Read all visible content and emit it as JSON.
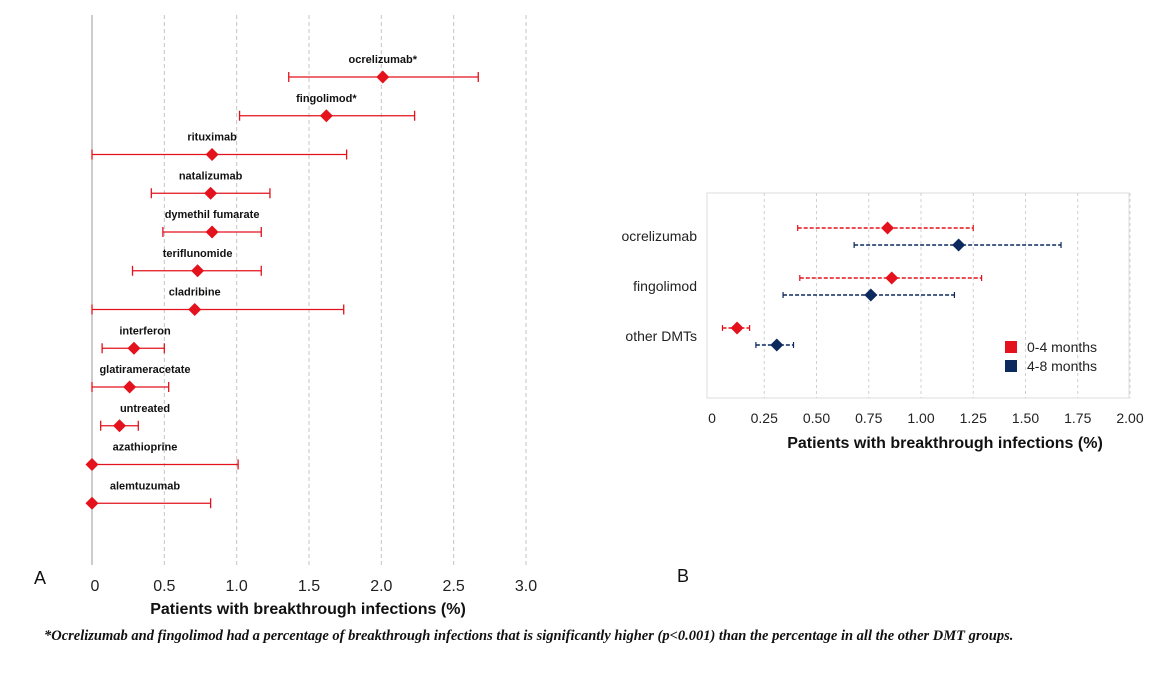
{
  "chart_data": [
    {
      "id": "A",
      "type": "forest",
      "panel_label": "A",
      "xlabel": "Patients with breakthrough infections (%)",
      "xlim": [
        0,
        3.0
      ],
      "xticks": [
        "0",
        "0.5",
        "1.0",
        "1.5",
        "2.0",
        "2.5",
        "3.0"
      ],
      "grid": "vertical dashed",
      "color": "#e3121c",
      "rows": [
        {
          "label": "ocrelizumab*",
          "estimate": 2.01,
          "lower": 1.36,
          "upper": 2.67
        },
        {
          "label": "fingolimod*",
          "estimate": 1.62,
          "lower": 1.02,
          "upper": 2.23
        },
        {
          "label": "rituximab",
          "estimate": 0.83,
          "lower": 0.0,
          "upper": 1.76
        },
        {
          "label": "natalizumab",
          "estimate": 0.82,
          "lower": 0.41,
          "upper": 1.23
        },
        {
          "label": "dymethil fumarate",
          "estimate": 0.83,
          "lower": 0.49,
          "upper": 1.17
        },
        {
          "label": "teriflunomide",
          "estimate": 0.73,
          "lower": 0.28,
          "upper": 1.17
        },
        {
          "label": "cladribine",
          "estimate": 0.71,
          "lower": 0.0,
          "upper": 1.74
        },
        {
          "label": "interferon",
          "estimate": 0.29,
          "lower": 0.07,
          "upper": 0.5
        },
        {
          "label": "glatirameracetate",
          "estimate": 0.26,
          "lower": 0.0,
          "upper": 0.53
        },
        {
          "label": "untreated",
          "estimate": 0.19,
          "lower": 0.06,
          "upper": 0.32
        },
        {
          "label": "azathioprine",
          "estimate": 0.0,
          "lower": 0.0,
          "upper": 1.01
        },
        {
          "label": "alemtuzumab",
          "estimate": 0.0,
          "lower": 0.0,
          "upper": 0.82
        }
      ]
    },
    {
      "id": "B",
      "type": "forest",
      "panel_label": "B",
      "xlabel": "Patients with breakthrough infections (%)",
      "xlim": [
        0,
        2.0
      ],
      "xticks": [
        "0",
        "0.25",
        "0.50",
        "0.75",
        "1.00",
        "1.25",
        "1.50",
        "1.75",
        "2.00"
      ],
      "grid": "vertical dashed",
      "legend_position": "bottom-right",
      "categories": [
        "ocrelizumab",
        "fingolimod",
        "other DMTs"
      ],
      "series": [
        {
          "name": "0-4 months",
          "color": "#e3121c",
          "points": [
            {
              "estimate": 0.84,
              "lower": 0.41,
              "upper": 1.25
            },
            {
              "estimate": 0.86,
              "lower": 0.42,
              "upper": 1.29
            },
            {
              "estimate": 0.12,
              "lower": 0.05,
              "upper": 0.18
            }
          ]
        },
        {
          "name": "4-8 months",
          "color": "#0d2a5e",
          "points": [
            {
              "estimate": 1.18,
              "lower": 0.68,
              "upper": 1.67
            },
            {
              "estimate": 0.76,
              "lower": 0.34,
              "upper": 1.16
            },
            {
              "estimate": 0.31,
              "lower": 0.21,
              "upper": 0.39
            }
          ]
        }
      ]
    }
  ],
  "footnote": "*Ocrelizumab and fingolimod had a percentage of breakthrough infections that is significantly higher (p<0.001) than the percentage in all the other DMT groups."
}
